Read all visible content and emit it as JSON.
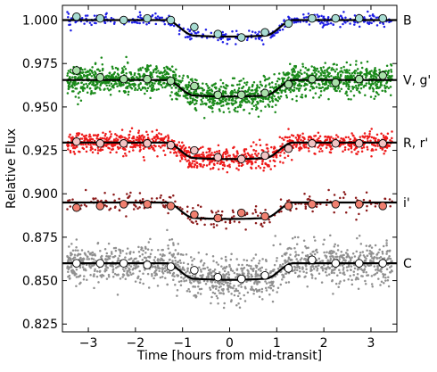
{
  "chart_data": {
    "type": "scatter",
    "title": "",
    "xlabel": "Time [hours from mid-transit]",
    "ylabel": "Relative Flux",
    "xlim": [
      -3.55,
      3.55
    ],
    "ylim": [
      0.8205,
      1.0085
    ],
    "xticks": [
      -3,
      -2,
      -1,
      0,
      1,
      2,
      3
    ],
    "yticks": [
      0.825,
      0.85,
      0.875,
      0.9,
      0.925,
      0.95,
      0.975,
      1.0
    ],
    "xtick_labels": [
      "−3",
      "−2",
      "−1",
      "0",
      "1",
      "2",
      "3"
    ],
    "ytick_labels": [
      "0.825",
      "0.850",
      "0.875",
      "0.900",
      "0.925",
      "0.950",
      "0.975",
      "1.000"
    ],
    "transit": {
      "t1": -1.35,
      "t2": -0.75,
      "t3": 0.75,
      "t4": 1.35
    },
    "series": [
      {
        "name": "B",
        "color": "#1f1fe6",
        "binned_color": "#a8dcd2",
        "baseline": 1.0,
        "depth": 0.0095,
        "scatter": 0.0017,
        "n_points": 360,
        "binned": {
          "x": [
            -3.25,
            -2.75,
            -2.25,
            -1.75,
            -1.25,
            -0.75,
            -0.25,
            0.25,
            0.75,
            1.25,
            1.75,
            2.25,
            2.75,
            3.25
          ],
          "y": [
            1.002,
            1.001,
            1.0,
            1.001,
            1.0,
            0.996,
            0.992,
            0.99,
            0.993,
            0.998,
            1.001,
            1.001,
            1.001,
            1.001
          ]
        }
      },
      {
        "name": "V, g'",
        "color": "#1a8a1a",
        "binned_color": "#a8e0a8",
        "baseline": 0.9655,
        "depth": 0.0095,
        "scatter": 0.0042,
        "n_points": 1700,
        "binned": {
          "x": [
            -3.25,
            -2.75,
            -2.25,
            -1.75,
            -1.25,
            -0.75,
            -0.25,
            0.25,
            0.75,
            1.25,
            1.75,
            2.25,
            2.75,
            3.25
          ],
          "y": [
            0.971,
            0.967,
            0.966,
            0.966,
            0.965,
            0.962,
            0.957,
            0.957,
            0.958,
            0.963,
            0.966,
            0.964,
            0.966,
            0.968
          ]
        }
      },
      {
        "name": "R, r'",
        "color": "#ee1a1a",
        "binned_color": "#f2c4c4",
        "baseline": 0.9295,
        "depth": 0.0095,
        "scatter": 0.003,
        "n_points": 1100,
        "binned": {
          "x": [
            -3.25,
            -2.75,
            -2.25,
            -1.75,
            -1.25,
            -0.75,
            -0.25,
            0.25,
            0.75,
            1.25,
            1.75,
            2.25,
            2.75,
            3.25
          ],
          "y": [
            0.93,
            0.929,
            0.929,
            0.929,
            0.928,
            0.925,
            0.921,
            0.92,
            0.922,
            0.926,
            0.929,
            0.929,
            0.929,
            0.929
          ]
        }
      },
      {
        "name": "i'",
        "color": "#8b1a1a",
        "binned_color": "#f08070",
        "baseline": 0.895,
        "depth": 0.0095,
        "scatter": 0.0032,
        "n_points": 230,
        "binned": {
          "x": [
            -3.25,
            -2.75,
            -2.25,
            -1.75,
            -1.25,
            -0.75,
            -0.25,
            0.25,
            0.75,
            1.25,
            1.75,
            2.25,
            2.75,
            3.25
          ],
          "y": [
            0.892,
            0.893,
            0.894,
            0.894,
            0.893,
            0.888,
            0.886,
            0.889,
            0.887,
            0.893,
            0.894,
            0.894,
            0.894,
            0.893
          ]
        }
      },
      {
        "name": "C",
        "color": "#909090",
        "binned_color": "#ffffff",
        "baseline": 0.86,
        "depth": 0.0095,
        "scatter": 0.0058,
        "n_points": 1350,
        "binned": {
          "x": [
            -3.25,
            -2.75,
            -2.25,
            -1.75,
            -1.25,
            -0.75,
            -0.25,
            0.25,
            0.75,
            1.25,
            1.75,
            2.25,
            2.75,
            3.25
          ],
          "y": [
            0.86,
            0.86,
            0.86,
            0.859,
            0.858,
            0.856,
            0.852,
            0.851,
            0.853,
            0.857,
            0.862,
            0.86,
            0.86,
            0.86
          ]
        }
      }
    ]
  }
}
